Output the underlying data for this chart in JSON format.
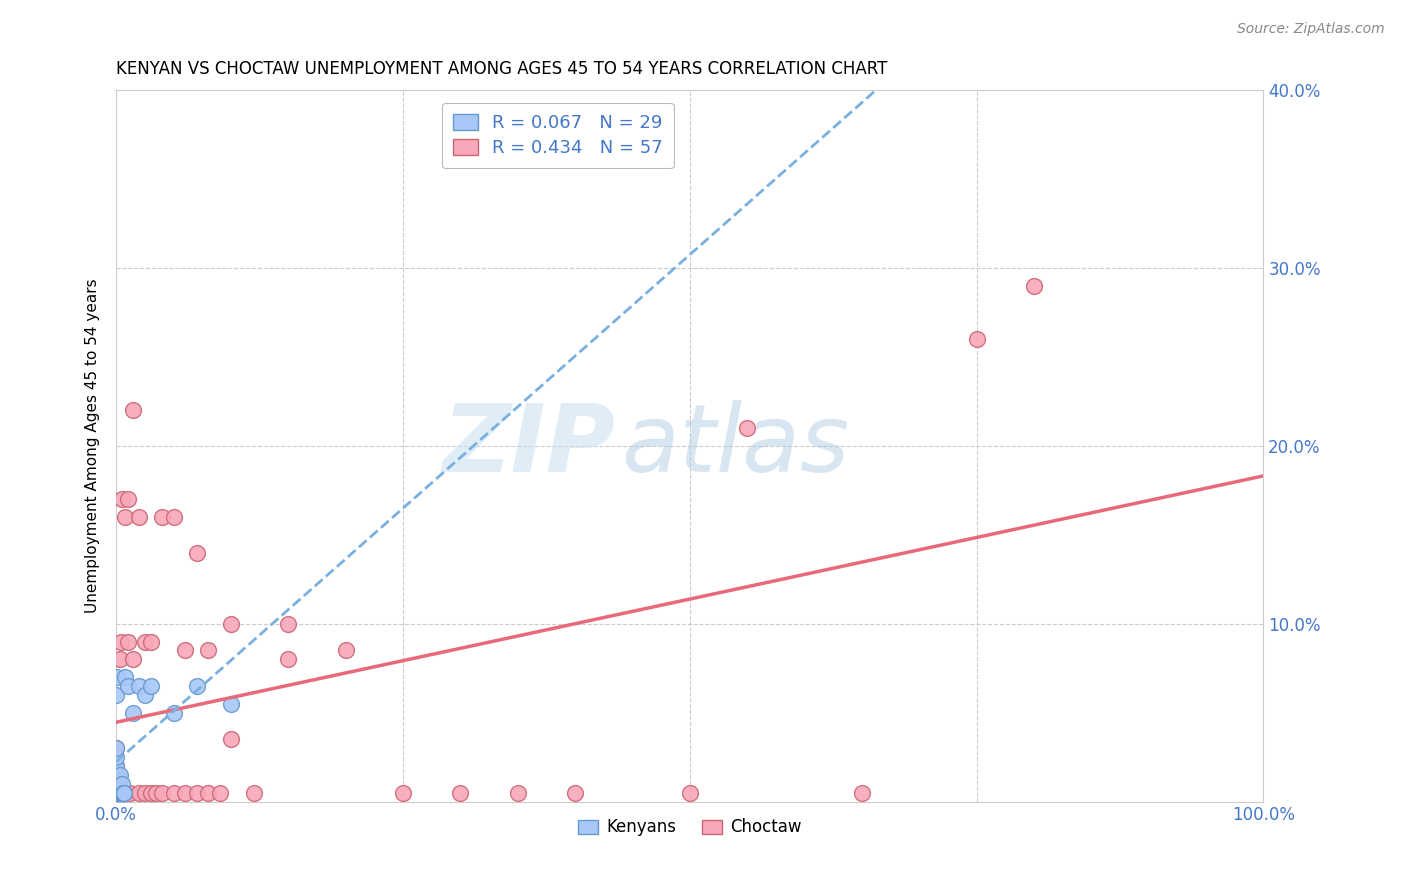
{
  "title": "KENYAN VS CHOCTAW UNEMPLOYMENT AMONG AGES 45 TO 54 YEARS CORRELATION CHART",
  "source": "Source: ZipAtlas.com",
  "ylabel": "Unemployment Among Ages 45 to 54 years",
  "xlim": [
    0,
    1.0
  ],
  "ylim": [
    0,
    0.4
  ],
  "kenyan_color": "#a8c8f8",
  "kenyan_edge": "#6699cc",
  "choctaw_color": "#f8a8b8",
  "choctaw_edge": "#cc6677",
  "kenyan_line_color": "#7ab0e0",
  "choctaw_line_color": "#e8697a",
  "kenyan_R": 0.067,
  "kenyan_N": 29,
  "choctaw_R": 0.434,
  "choctaw_N": 57,
  "legend_label_kenyan": "Kenyans",
  "legend_label_choctaw": "Choctaw",
  "watermark_zip": "ZIP",
  "watermark_atlas": "atlas",
  "background_color": "#ffffff",
  "grid_color": "#cccccc",
  "tick_color": "#4477cc",
  "kenyan_x": [
    0.0,
    0.0,
    0.0,
    0.0,
    0.0,
    0.0,
    0.0,
    0.0,
    0.001,
    0.001,
    0.001,
    0.002,
    0.002,
    0.003,
    0.003,
    0.004,
    0.005,
    0.005,
    0.006,
    0.007,
    0.008,
    0.01,
    0.015,
    0.02,
    0.025,
    0.03,
    0.05,
    0.07,
    0.1
  ],
  "kenyan_y": [
    0.0,
    0.005,
    0.01,
    0.015,
    0.02,
    0.025,
    0.03,
    0.06,
    0.005,
    0.01,
    0.07,
    0.005,
    0.01,
    0.005,
    0.015,
    0.005,
    0.005,
    0.01,
    0.005,
    0.005,
    0.07,
    0.065,
    0.05,
    0.065,
    0.06,
    0.065,
    0.05,
    0.065,
    0.055
  ],
  "choctaw_x": [
    0.0,
    0.0,
    0.0,
    0.0,
    0.0,
    0.001,
    0.001,
    0.002,
    0.002,
    0.003,
    0.003,
    0.004,
    0.004,
    0.005,
    0.005,
    0.006,
    0.007,
    0.008,
    0.008,
    0.01,
    0.01,
    0.012,
    0.015,
    0.015,
    0.02,
    0.02,
    0.025,
    0.025,
    0.03,
    0.03,
    0.035,
    0.04,
    0.04,
    0.05,
    0.05,
    0.06,
    0.06,
    0.07,
    0.07,
    0.08,
    0.08,
    0.09,
    0.1,
    0.1,
    0.12,
    0.15,
    0.15,
    0.2,
    0.25,
    0.3,
    0.35,
    0.4,
    0.5,
    0.55,
    0.65,
    0.75,
    0.8
  ],
  "choctaw_y": [
    0.005,
    0.01,
    0.015,
    0.02,
    0.03,
    0.005,
    0.01,
    0.005,
    0.015,
    0.005,
    0.08,
    0.005,
    0.09,
    0.005,
    0.17,
    0.005,
    0.005,
    0.005,
    0.16,
    0.09,
    0.17,
    0.005,
    0.08,
    0.22,
    0.005,
    0.16,
    0.005,
    0.09,
    0.005,
    0.09,
    0.005,
    0.005,
    0.16,
    0.005,
    0.16,
    0.005,
    0.085,
    0.005,
    0.14,
    0.005,
    0.085,
    0.005,
    0.035,
    0.1,
    0.005,
    0.08,
    0.1,
    0.085,
    0.005,
    0.005,
    0.005,
    0.005,
    0.005,
    0.21,
    0.005,
    0.26,
    0.29
  ]
}
